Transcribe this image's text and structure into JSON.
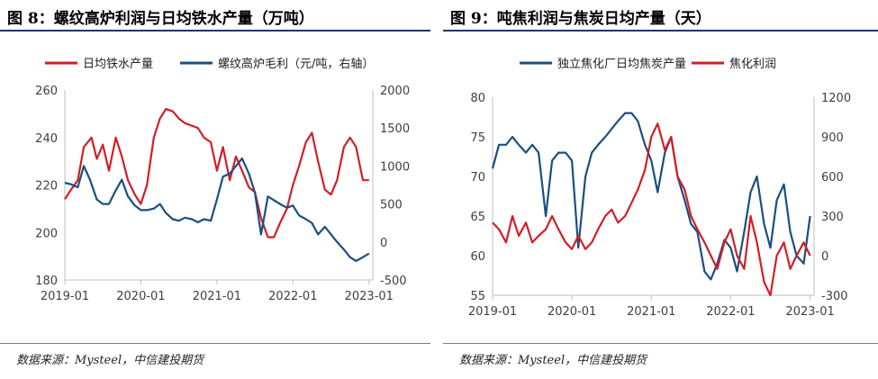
{
  "left": {
    "title": "图 8：螺纹高炉利润与日均铁水产量（万吨）",
    "source": "数据来源：Mysteel，中信建投期货"
  },
  "right": {
    "title": "图 9：吨焦利润与焦炭日均产量（天）",
    "source": "数据来源：Mysteel，中信建投期货"
  },
  "colors": {
    "red": "#d11f26",
    "blue": "#1a4f80",
    "axis": "#bfbfbf",
    "text": "#404040"
  },
  "chart_data": [
    {
      "type": "line",
      "x_ticks": [
        "2019-01",
        "2020-01",
        "2021-01",
        "2022-01",
        "2023-01"
      ],
      "x_range": [
        2019.0,
        2023.05
      ],
      "y_left": {
        "range": [
          180,
          260
        ],
        "ticks": [
          "180",
          "200",
          "220",
          "240",
          "260"
        ]
      },
      "y_right": {
        "range": [
          -500,
          2000
        ],
        "ticks": [
          "-500",
          "0",
          "500",
          "1000",
          "1500",
          "2000"
        ]
      },
      "series": [
        {
          "name": "日均铁水产量",
          "axis": "left",
          "color": "#d11f26",
          "x": [
            2019.0,
            2019.08,
            2019.17,
            2019.25,
            2019.35,
            2019.42,
            2019.5,
            2019.58,
            2019.67,
            2019.75,
            2019.83,
            2019.92,
            2020.0,
            2020.08,
            2020.17,
            2020.25,
            2020.33,
            2020.42,
            2020.5,
            2020.58,
            2020.67,
            2020.75,
            2020.83,
            2020.92,
            2021.0,
            2021.08,
            2021.17,
            2021.25,
            2021.33,
            2021.42,
            2021.5,
            2021.58,
            2021.67,
            2021.75,
            2021.83,
            2021.92,
            2022.0,
            2022.08,
            2022.17,
            2022.25,
            2022.33,
            2022.42,
            2022.5,
            2022.58,
            2022.67,
            2022.75,
            2022.83,
            2022.92,
            2023.0
          ],
          "y": [
            214,
            218,
            222,
            236,
            240,
            231,
            237,
            226,
            240,
            232,
            222,
            216,
            212,
            220,
            240,
            248,
            252,
            251,
            248,
            246,
            245,
            244,
            240,
            238,
            226,
            236,
            222,
            232,
            226,
            219,
            217,
            206,
            198,
            198,
            204,
            210,
            220,
            228,
            238,
            242,
            230,
            218,
            216,
            222,
            236,
            240,
            236,
            222,
            222
          ]
        },
        {
          "name": "螺纹高炉毛利（元/吨，右轴）",
          "axis": "right",
          "color": "#1a4f80",
          "x": [
            2019.0,
            2019.08,
            2019.17,
            2019.25,
            2019.33,
            2019.42,
            2019.5,
            2019.58,
            2019.67,
            2019.75,
            2019.83,
            2019.92,
            2020.0,
            2020.08,
            2020.17,
            2020.25,
            2020.33,
            2020.42,
            2020.5,
            2020.58,
            2020.67,
            2020.75,
            2020.83,
            2020.92,
            2021.0,
            2021.08,
            2021.17,
            2021.25,
            2021.33,
            2021.42,
            2021.5,
            2021.58,
            2021.67,
            2021.75,
            2021.83,
            2021.92,
            2022.0,
            2022.08,
            2022.17,
            2022.25,
            2022.33,
            2022.42,
            2022.5,
            2022.58,
            2022.67,
            2022.75,
            2022.83,
            2022.92,
            2023.0
          ],
          "y": [
            780,
            760,
            720,
            1000,
            820,
            560,
            500,
            500,
            680,
            820,
            600,
            480,
            420,
            420,
            440,
            500,
            380,
            300,
            280,
            320,
            300,
            260,
            300,
            280,
            560,
            860,
            900,
            1000,
            1100,
            900,
            650,
            100,
            600,
            550,
            500,
            450,
            480,
            350,
            300,
            250,
            100,
            200,
            100,
            0,
            -100,
            -200,
            -250,
            -200,
            -150
          ]
        }
      ]
    },
    {
      "type": "line",
      "x_ticks": [
        "2019-01",
        "2020-01",
        "2021-01",
        "2022-01",
        "2023-01"
      ],
      "x_range": [
        2019.0,
        2023.05
      ],
      "y_left": {
        "range": [
          55,
          80
        ],
        "ticks": [
          "55",
          "60",
          "65",
          "70",
          "75",
          "80"
        ]
      },
      "y_right": {
        "range": [
          -300,
          1200
        ],
        "ticks": [
          "-300",
          "0",
          "300",
          "600",
          "900",
          "1200"
        ]
      },
      "series": [
        {
          "name": "独立焦化厂日均焦炭产量",
          "axis": "left",
          "color": "#1a4f80",
          "x": [
            2019.0,
            2019.08,
            2019.17,
            2019.25,
            2019.33,
            2019.42,
            2019.5,
            2019.58,
            2019.67,
            2019.75,
            2019.83,
            2019.92,
            2020.0,
            2020.08,
            2020.17,
            2020.25,
            2020.33,
            2020.42,
            2020.5,
            2020.58,
            2020.67,
            2020.75,
            2020.83,
            2020.92,
            2021.0,
            2021.08,
            2021.17,
            2021.25,
            2021.33,
            2021.42,
            2021.5,
            2021.58,
            2021.67,
            2021.75,
            2021.83,
            2021.92,
            2022.0,
            2022.08,
            2022.17,
            2022.25,
            2022.33,
            2022.42,
            2022.5,
            2022.58,
            2022.67,
            2022.75,
            2022.83,
            2022.92,
            2023.0
          ],
          "y": [
            71,
            74,
            74,
            75,
            74,
            73,
            74,
            73,
            65,
            72,
            73,
            73,
            72,
            61,
            70,
            73,
            74,
            75,
            76,
            77,
            78,
            78,
            77,
            74,
            72,
            68,
            73,
            75,
            70,
            67,
            64,
            63,
            58,
            57,
            59,
            62,
            61,
            58,
            63,
            68,
            70,
            64,
            61,
            67,
            69,
            63,
            60,
            59,
            65
          ]
        },
        {
          "name": "焦化利润",
          "axis": "right",
          "color": "#d11f26",
          "x": [
            2019.0,
            2019.08,
            2019.17,
            2019.25,
            2019.33,
            2019.42,
            2019.5,
            2019.58,
            2019.67,
            2019.75,
            2019.83,
            2019.92,
            2020.0,
            2020.08,
            2020.17,
            2020.25,
            2020.33,
            2020.42,
            2020.5,
            2020.58,
            2020.67,
            2020.75,
            2020.83,
            2020.92,
            2021.0,
            2021.08,
            2021.17,
            2021.25,
            2021.33,
            2021.42,
            2021.5,
            2021.58,
            2021.67,
            2021.75,
            2021.83,
            2021.92,
            2022.0,
            2022.08,
            2022.17,
            2022.25,
            2022.33,
            2022.42,
            2022.5,
            2022.58,
            2022.67,
            2022.75,
            2022.83,
            2022.92,
            2023.0
          ],
          "y": [
            250,
            200,
            100,
            300,
            150,
            250,
            100,
            150,
            200,
            300,
            200,
            100,
            50,
            150,
            50,
            100,
            200,
            300,
            350,
            250,
            300,
            400,
            500,
            650,
            900,
            1000,
            800,
            900,
            600,
            500,
            300,
            200,
            100,
            0,
            -100,
            100,
            200,
            0,
            -100,
            300,
            100,
            -200,
            -300,
            0,
            100,
            -100,
            0,
            100,
            0
          ]
        }
      ]
    }
  ]
}
